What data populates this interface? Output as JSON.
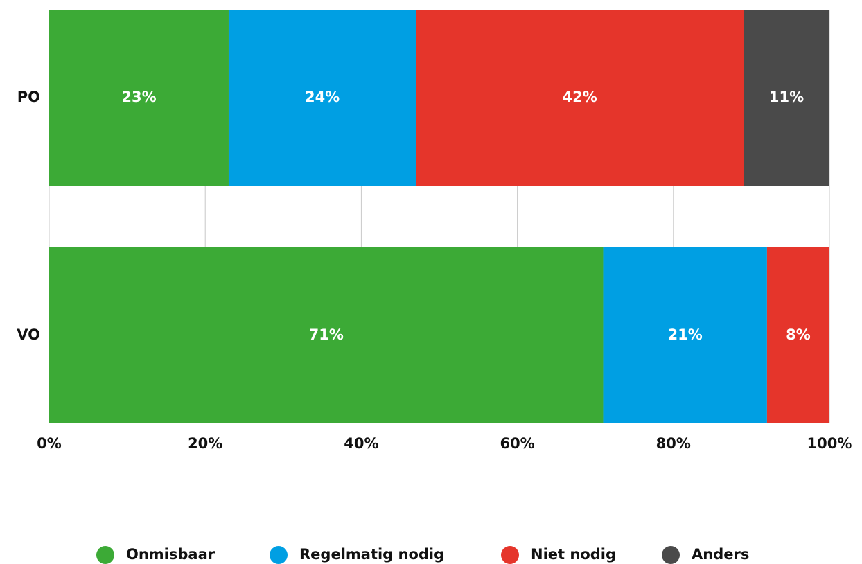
{
  "chart_data": {
    "type": "stacked-bar-horizontal",
    "categories": [
      "PO",
      "VO"
    ],
    "series": [
      {
        "name": "Onmisbaar",
        "color": "#3caa36",
        "values": [
          23,
          71
        ],
        "value_labels": [
          "23%",
          "71%"
        ]
      },
      {
        "name": "Regelmatig nodig",
        "color": "#009fe3",
        "values": [
          24,
          21
        ],
        "value_labels": [
          "24%",
          "21%"
        ]
      },
      {
        "name": "Niet nodig",
        "color": "#e5352b",
        "values": [
          42,
          8
        ],
        "value_labels": [
          "42%",
          "8%"
        ]
      },
      {
        "name": "Anders",
        "color": "#4a4a4a",
        "values": [
          11,
          null
        ],
        "value_labels": [
          "11%",
          null
        ]
      }
    ],
    "xlim": [
      0,
      100
    ],
    "xticks": [
      {
        "value": 0,
        "label": "0%"
      },
      {
        "value": 20,
        "label": "20%"
      },
      {
        "value": 40,
        "label": "40%"
      },
      {
        "value": 60,
        "label": "60%"
      },
      {
        "value": 80,
        "label": "80%"
      },
      {
        "value": 100,
        "label": "100%"
      }
    ],
    "grid": true,
    "legend": "bottom"
  }
}
